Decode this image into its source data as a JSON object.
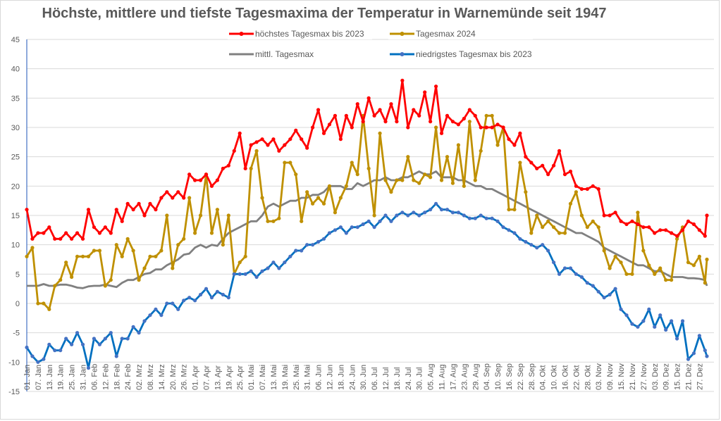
{
  "chart_data": {
    "type": "line",
    "title": "Höchste, mittlere und tiefste Tagesmaxima der Temperatur in Warnemünde seit 1947",
    "xlabel": "",
    "ylabel": "",
    "ylim": [
      -15,
      45
    ],
    "yticks": [
      45,
      40,
      35,
      30,
      25,
      20,
      15,
      10,
      5,
      0,
      -5,
      -10,
      -15
    ],
    "grid": true,
    "legend_position": "top",
    "x_day_range": [
      1,
      365
    ],
    "x_tick_labels": [
      "01. Jan",
      "07. Jan",
      "13. Jan",
      "19. Jan",
      "25. Jan",
      "31. Jan",
      "06. Feb",
      "12. Feb",
      "18. Feb",
      "24. Feb",
      "02. Mrz",
      "08. Mrz",
      "14. Mrz",
      "20. Mrz",
      "26. Mrz",
      "01. Apr",
      "07. Apr",
      "13. Apr",
      "19. Apr",
      "25. Apr",
      "01. Mai",
      "07. Mai",
      "13. Mai",
      "19. Mai",
      "25. Mai",
      "31. Mai",
      "06. Jun",
      "12. Jun",
      "18. Jun",
      "24. Jun",
      "30. Jun",
      "06. Jul",
      "12. Jul",
      "18. Jul",
      "24. Jul",
      "30. Jul",
      "05. Aug",
      "11. Aug",
      "17. Aug",
      "23. Aug",
      "29. Aug",
      "04. Sep",
      "10. Sep",
      "16. Sep",
      "22. Sep",
      "28. Sep",
      "04. Okt",
      "10. Okt",
      "16. Okt",
      "22. Okt",
      "28. Okt",
      "03. Nov",
      "09. Nov",
      "15. Nov",
      "21. Nov",
      "27. Nov",
      "03. Dez",
      "09. Dez",
      "15. Dez",
      "21. Dez",
      "27. Dez"
    ],
    "x_step_days": 3,
    "series": [
      {
        "name": "höchstes Tagesmax bis 2023",
        "color": "#ff0000",
        "markers": true,
        "values": [
          16,
          11,
          12,
          12,
          13,
          11,
          11,
          12,
          11,
          12,
          11,
          16,
          13,
          12,
          13,
          12,
          16,
          14,
          17,
          16,
          17,
          15,
          17,
          16,
          18,
          19,
          18,
          19,
          18,
          22,
          21,
          21,
          22,
          20,
          21,
          23,
          23.5,
          26,
          29,
          23,
          27,
          27.5,
          28,
          27,
          28,
          26,
          27,
          28,
          29.5,
          28,
          26.5,
          30,
          33,
          29,
          30.5,
          32,
          28,
          32,
          30,
          34,
          31,
          35,
          32,
          33,
          31,
          34,
          31,
          38,
          30,
          33,
          32,
          36,
          31,
          37,
          29,
          32,
          31,
          30.5,
          31.5,
          33,
          32,
          30,
          30,
          30,
          30.5,
          30,
          28,
          27,
          29,
          25,
          24,
          23,
          23.5,
          22,
          23.5,
          26,
          22,
          22.5,
          20,
          19.5,
          19.5,
          20,
          19.5,
          15,
          15,
          15.5,
          14,
          13.5,
          14,
          13.5,
          13,
          13,
          12,
          12.5,
          12.5,
          12,
          11.5,
          12.5,
          14,
          13.5,
          12.5,
          11.5,
          15
        ]
      },
      {
        "name": "Tagesmax 2024",
        "color": "#bf9000",
        "markers": true,
        "values": [
          8,
          9.5,
          0,
          0,
          -1,
          3,
          4,
          7,
          4.5,
          8,
          8,
          8,
          9,
          9,
          3,
          4,
          10,
          8,
          11,
          9,
          4,
          6,
          8,
          8,
          9,
          15,
          6,
          10,
          11,
          18,
          12,
          15,
          22,
          12,
          16,
          10,
          15,
          5,
          7,
          8,
          23,
          26,
          18,
          14,
          14,
          14.5,
          24,
          24,
          22,
          14,
          19,
          17,
          18,
          17,
          20,
          15.5,
          18,
          20,
          24,
          22,
          32,
          23,
          15,
          29,
          21,
          19,
          21,
          21,
          25,
          21,
          20.5,
          22,
          21.5,
          30,
          21,
          25,
          20.5,
          27,
          20,
          31,
          21,
          26,
          32,
          32,
          27,
          30,
          16,
          16,
          24,
          19,
          12,
          15,
          13,
          14,
          13,
          12,
          12,
          17,
          19,
          15,
          13,
          14,
          13,
          9,
          6,
          8,
          7,
          5,
          5,
          15.5,
          9,
          6.5,
          5,
          6,
          4,
          4,
          11,
          13,
          7,
          6.5,
          8,
          3.5,
          7.5
        ]
      },
      {
        "name": "mittl. Tagesmax",
        "color": "#808080",
        "markers": false,
        "values": [
          3,
          3,
          3,
          3.3,
          3,
          3,
          3.2,
          3.2,
          3,
          2.7,
          2.6,
          2.9,
          3,
          3,
          3.2,
          3,
          2.8,
          3.5,
          4,
          4,
          4.5,
          5,
          5.2,
          5.8,
          5.8,
          6.5,
          7,
          7.5,
          8.3,
          8.5,
          9.5,
          10,
          9.5,
          10,
          9.8,
          11,
          12,
          12.5,
          13,
          13.5,
          14,
          14,
          15,
          16.5,
          17,
          16.5,
          17,
          17.5,
          17.5,
          18,
          18,
          18.5,
          18.5,
          19,
          20,
          20,
          20,
          19.5,
          19.5,
          20.5,
          20,
          20.5,
          21,
          21,
          21.5,
          21,
          21,
          21.5,
          21.5,
          22,
          22.5,
          22,
          22,
          22.5,
          21.5,
          21.5,
          21.5,
          21,
          21,
          20.5,
          20,
          20,
          19.5,
          19.5,
          19,
          18.5,
          18,
          17.5,
          17,
          16.5,
          16,
          15.5,
          15,
          14.5,
          14,
          13.5,
          13,
          12.5,
          12,
          12,
          11.5,
          11,
          10.5,
          9.5,
          9,
          8.5,
          8,
          7.5,
          7,
          6.5,
          6.5,
          6,
          5.5,
          5.5,
          5,
          4.5,
          4.5,
          4.5,
          4.3,
          4.3,
          4.2,
          4,
          3
        ]
      },
      {
        "name": "niedrigstes Tagesmax bis 2023",
        "color": "#0070c0",
        "markers": true,
        "values": [
          -7.5,
          -9,
          -10,
          -9.5,
          -7,
          -8,
          -8,
          -6,
          -7,
          -5,
          -7,
          -11,
          -6,
          -7,
          -6,
          -5,
          -9,
          -6,
          -6,
          -4,
          -5,
          -3,
          -2,
          -1,
          -2,
          0,
          0,
          -1,
          0.5,
          1,
          0.5,
          1.5,
          2.5,
          1,
          2,
          1.5,
          1,
          5,
          5,
          5,
          5.5,
          4.5,
          5.5,
          6,
          7,
          6,
          7,
          8,
          9,
          9,
          10,
          10,
          10.5,
          11,
          12,
          12.5,
          13,
          12,
          13,
          13,
          13.5,
          14,
          13,
          14,
          15,
          14,
          15,
          15.5,
          15,
          15.5,
          15,
          15.5,
          16,
          17,
          16,
          16,
          15.5,
          15.5,
          15,
          14.5,
          14.5,
          15,
          14.5,
          14.5,
          14,
          13,
          12.5,
          12,
          11,
          10.5,
          10,
          9.5,
          10,
          9,
          7,
          5,
          6,
          6,
          5,
          4.5,
          3.5,
          3,
          2,
          1,
          1.5,
          2.5,
          -1,
          -2,
          -3.5,
          -4,
          -3,
          -1,
          -4,
          -2,
          -4.5,
          -3,
          -6,
          -3,
          -9.5,
          -8.5,
          -5.5,
          -8,
          -9
        ]
      }
    ]
  }
}
